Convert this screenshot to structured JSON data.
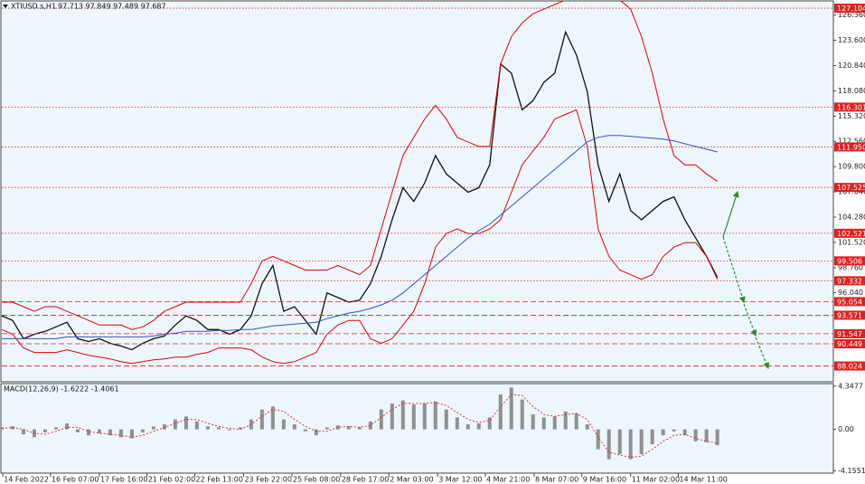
{
  "chart_data": [
    {
      "type": "line",
      "title": "XTIUSD.s,H1",
      "subtitle": "97.713 97.849 97.489 97.687",
      "x": [
        0,
        1,
        2,
        3,
        4,
        5,
        6,
        7,
        8,
        9,
        10,
        11,
        12,
        13,
        14,
        15,
        16,
        17,
        18,
        19,
        20,
        21,
        22,
        23,
        24,
        25,
        26,
        27,
        28,
        29,
        30,
        31,
        32,
        33,
        34,
        35,
        36,
        37,
        38,
        39,
        40,
        41,
        42,
        43,
        44,
        45,
        46,
        47,
        48,
        49,
        50,
        51,
        52,
        53,
        54,
        55,
        56,
        57,
        58,
        59,
        60,
        61,
        62,
        63,
        64,
        65,
        66
      ],
      "series": [
        {
          "color": "#111111",
          "values": [
            93.5,
            93,
            91,
            91.5,
            91.8,
            92.3,
            92.8,
            91,
            90.7,
            91,
            90.5,
            90.2,
            89.8,
            90.5,
            91,
            91.3,
            92.5,
            93.5,
            93,
            92,
            92,
            91.5,
            92,
            93.5,
            97,
            99,
            94,
            94.5,
            93,
            91.5,
            96,
            95.5,
            95,
            95.2,
            97,
            100,
            104,
            107.5,
            106,
            108,
            111,
            109,
            108,
            107,
            107.5,
            110,
            121,
            120,
            116,
            117,
            119,
            120,
            124.5,
            122,
            118,
            110,
            106,
            109,
            105,
            104,
            105,
            106,
            106.5,
            104,
            102,
            100,
            97.7
          ]
        },
        {
          "color": "#e00000",
          "values": [
            95,
            95,
            94.5,
            94,
            94.5,
            94.5,
            94,
            93.5,
            93,
            92.5,
            92.5,
            92.5,
            92,
            92.3,
            93,
            94,
            94.5,
            95,
            95,
            95,
            95,
            95,
            95,
            97,
            99.5,
            100,
            99.5,
            99,
            98.5,
            98.5,
            98.5,
            99,
            98.5,
            98,
            99,
            103,
            107,
            111,
            113,
            115,
            116.5,
            115,
            113,
            112.5,
            112,
            112,
            121,
            124,
            125.5,
            126.5,
            127,
            127.5,
            128,
            128,
            128,
            128,
            128,
            128,
            127,
            124,
            120,
            115,
            111,
            110,
            110,
            109,
            108.2
          ]
        },
        {
          "color": "#e00000",
          "values": [
            92,
            91.5,
            90,
            89.5,
            89.5,
            89.5,
            89.8,
            89.5,
            89.2,
            89,
            88.8,
            88.5,
            88.3,
            88.5,
            88.7,
            88.8,
            89,
            89,
            89.3,
            89.5,
            90,
            90,
            90,
            89.8,
            89,
            88.5,
            88.3,
            88.5,
            89,
            89.5,
            91.5,
            92.5,
            93,
            93,
            91,
            90.5,
            91,
            92.5,
            94,
            97,
            101,
            102.5,
            103,
            102.5,
            102.5,
            103,
            104,
            107,
            110,
            111.5,
            113,
            115,
            115.5,
            116,
            112,
            103,
            100,
            98.5,
            98,
            97.5,
            98,
            100,
            101,
            101.5,
            101.5,
            100,
            97.5
          ]
        },
        {
          "color": "#3050d0",
          "values": [
            91,
            91,
            91,
            91,
            91,
            91,
            91.2,
            91.2,
            91.2,
            91.2,
            91.2,
            91.2,
            91.2,
            91.2,
            91.3,
            91.5,
            91.6,
            91.8,
            91.8,
            91.8,
            91.9,
            91.9,
            92,
            92,
            92.2,
            92.4,
            92.5,
            92.6,
            92.7,
            92.8,
            93.2,
            93.5,
            93.8,
            94,
            94.3,
            94.7,
            95.2,
            96,
            97,
            98,
            99,
            100,
            101,
            102,
            102.8,
            103.5,
            104.5,
            105.5,
            106.5,
            107.5,
            108.5,
            109.5,
            110.5,
            111.5,
            112.5,
            113,
            113.2,
            113.2,
            113.1,
            113,
            112.9,
            112.8,
            112.6,
            112.3,
            112,
            111.7,
            111.4
          ]
        }
      ],
      "levels": [
        {
          "value": 127.104,
          "label": "127.104",
          "style": "dotted"
        },
        {
          "value": 116.301,
          "label": "116.301",
          "style": "dotted"
        },
        {
          "value": 111.95,
          "label": "111.950",
          "style": "dotted"
        },
        {
          "value": 107.525,
          "label": "107.525",
          "style": "dotted"
        },
        {
          "value": 102.521,
          "label": "102.521",
          "style": "dotted"
        },
        {
          "value": 99.506,
          "label": "99.506",
          "style": "dotted"
        },
        {
          "value": 97.332,
          "label": "97.332",
          "style": "dotted"
        },
        {
          "value": 95.054,
          "label": "95.054",
          "style": "dashed"
        },
        {
          "value": 93.571,
          "label": "93.571",
          "style": "dashed"
        },
        {
          "value": 91.547,
          "label": "91.547",
          "style": "dashed"
        },
        {
          "value": 90.449,
          "label": "90.449",
          "style": "dashed"
        },
        {
          "value": 88.024,
          "label": "88.024",
          "style": "dashed"
        }
      ],
      "level_color": "#e02020",
      "xlim": [
        0,
        76.7
      ],
      "ylim": [
        86.3,
        127.9
      ],
      "yticks": [
        {
          "value": 126.36,
          "label": "126.360"
        },
        {
          "value": 123.6,
          "label": "123.600"
        },
        {
          "value": 120.84,
          "label": "120.840"
        },
        {
          "value": 118.08,
          "label": "118.080"
        },
        {
          "value": 115.32,
          "label": "115.320"
        },
        {
          "value": 112.56,
          "label": "112.560"
        },
        {
          "value": 109.8,
          "label": "109.800"
        },
        {
          "value": 107.04,
          "label": "107.040"
        },
        {
          "value": 104.28,
          "label": "104.280"
        },
        {
          "value": 101.52,
          "label": "101.520"
        },
        {
          "value": 98.76,
          "label": "98.760"
        },
        {
          "value": 96.04,
          "label": "96.040"
        }
      ]
    },
    {
      "type": "bar",
      "title": "MACD(12,26,9) -1.6222 -1.4061",
      "color": "#909090",
      "signal_color": "#e03030",
      "values": [
        0.2,
        0.3,
        -0.5,
        -0.8,
        -0.3,
        0.2,
        0.6,
        -0.3,
        -0.6,
        -0.4,
        -0.6,
        -0.8,
        -0.9,
        -0.3,
        0.3,
        0.5,
        1,
        1.3,
        0.8,
        0.3,
        0.2,
        -0.1,
        0.2,
        1,
        2,
        2.3,
        1,
        0.5,
        -0.2,
        -0.6,
        0.2,
        0.4,
        0.3,
        0.2,
        0.8,
        2,
        2.6,
        2.9,
        2.5,
        2.6,
        2.8,
        2,
        1.2,
        0.5,
        0.6,
        1.2,
        3.5,
        4.2,
        3,
        1.5,
        1.2,
        1.3,
        1.8,
        1.6,
        0.5,
        -2,
        -3,
        -2.5,
        -3,
        -2.5,
        -1.5,
        -0.6,
        -0.2,
        -0.6,
        -1.2,
        -1.3,
        -1.6
      ],
      "signal": [
        0.1,
        0.2,
        0,
        -0.4,
        -0.5,
        -0.2,
        0.2,
        0.2,
        -0.2,
        -0.4,
        -0.5,
        -0.6,
        -0.8,
        -0.6,
        -0.2,
        0.2,
        0.6,
        1,
        1,
        0.6,
        0.3,
        0.1,
        0,
        0.5,
        1.3,
        2,
        1.8,
        1,
        0.3,
        -0.2,
        -0.2,
        0.2,
        0.3,
        0.2,
        0.4,
        1.2,
        2,
        2.6,
        2.6,
        2.6,
        2.7,
        2.4,
        1.7,
        1,
        0.7,
        0.9,
        2.3,
        3.5,
        3.4,
        2.3,
        1.5,
        1.3,
        1.5,
        1.6,
        1,
        -0.8,
        -2.3,
        -2.6,
        -2.8,
        -2.7,
        -2,
        -1.2,
        -0.6,
        -0.5,
        -0.9,
        -1.2,
        -1.4
      ],
      "xlim": [
        0,
        76.7
      ],
      "ylim": [
        -4.4,
        4.6
      ],
      "yticks": [
        4.3477,
        {
          "value": 0,
          "label": "0.00"
        },
        -4.1551
      ],
      "xticks": [
        {
          "value": 0.1,
          "label": "14 Feb 2022"
        },
        {
          "value": 4.5,
          "label": "16 Feb 07:00"
        },
        {
          "value": 9,
          "label": "17 Feb 16:00"
        },
        {
          "value": 13.4,
          "label": "21 Feb 02:00"
        },
        {
          "value": 17.8,
          "label": "22 Feb 13:00"
        },
        {
          "value": 22.3,
          "label": "23 Feb 22:00"
        },
        {
          "value": 26.75,
          "label": "25 Feb 08:00"
        },
        {
          "value": 31.25,
          "label": "28 Feb 17:00"
        },
        {
          "value": 35.7,
          "label": "2 Mar 03:00"
        },
        {
          "value": 40.2,
          "label": "3 Mar 12:00"
        },
        {
          "value": 44.6,
          "label": "4 Mar 21:00"
        },
        {
          "value": 49.1,
          "label": "8 Mar 07:00"
        },
        {
          "value": 53.5,
          "label": "9 Mar 16:00"
        },
        {
          "value": 58,
          "label": "11 Mar 02:00"
        },
        {
          "value": 62.4,
          "label": "14 Mar 11:00"
        }
      ]
    }
  ]
}
